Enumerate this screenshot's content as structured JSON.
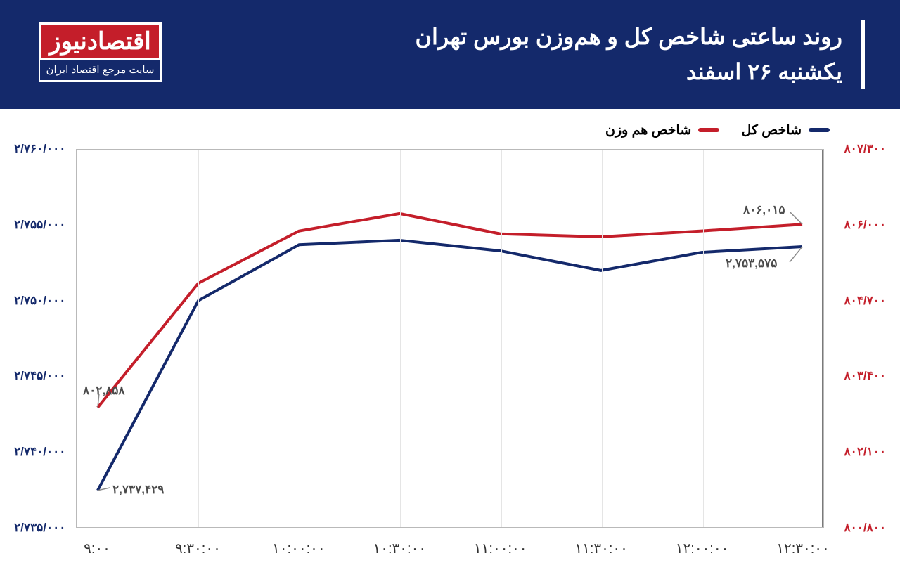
{
  "header": {
    "title_line1": "روند ساعتی شاخص کل و هم‌وزن بورس تهران",
    "title_line2": "یکشنبه ۲۶ اسفند"
  },
  "logo": {
    "brand": "اقتصادنیوز",
    "tagline": "سایت مرجع اقتصاد ایران"
  },
  "legend": {
    "series1": {
      "label": "شاخص کل",
      "color": "#14296b"
    },
    "series2": {
      "label": "شاخص هم وزن",
      "color": "#c41e2a"
    }
  },
  "chart": {
    "type": "line",
    "background_color": "#ffffff",
    "grid_color": "#cfcfcf",
    "x_labels": [
      "۹:۰۰",
      "۹:۳۰:۰۰",
      "۱۰:۰۰:۰۰",
      "۱۰:۳۰:۰۰",
      "۱۱:۰۰:۰۰",
      "۱۱:۳۰:۰۰",
      "۱۲:۰۰:۰۰",
      "۱۲:۳۰:۰۰"
    ],
    "axis_left": {
      "color": "#14296b",
      "min": 2735000,
      "max": 2760000,
      "ticks": [
        2735000,
        2740000,
        2745000,
        2750000,
        2755000,
        2760000
      ],
      "tick_labels": [
        "۲/۷۳۵/۰۰۰",
        "۲/۷۴۰/۰۰۰",
        "۲/۷۴۵/۰۰۰",
        "۲/۷۵۰/۰۰۰",
        "۲/۷۵۵/۰۰۰",
        "۲/۷۶۰/۰۰۰"
      ]
    },
    "axis_right": {
      "color": "#c41e2a",
      "min": 800800,
      "max": 807300,
      "ticks": [
        800800,
        802100,
        803400,
        804700,
        806000,
        807300
      ],
      "tick_labels": [
        "۸۰۰/۸۰۰",
        "۸۰۲/۱۰۰",
        "۸۰۳/۴۰۰",
        "۸۰۴/۷۰۰",
        "۸۰۶/۰۰۰",
        "۸۰۷/۳۰۰"
      ]
    },
    "series_total": {
      "color": "#14296b",
      "width": 4,
      "axis": "left",
      "values": [
        2737429,
        2750000,
        2753700,
        2754000,
        2753300,
        2752000,
        2753200,
        2753575
      ]
    },
    "series_equal": {
      "color": "#c41e2a",
      "width": 4,
      "axis": "right",
      "values": [
        802858,
        805000,
        805900,
        806200,
        805850,
        805800,
        805900,
        806015
      ]
    },
    "annotations": {
      "start_total": "۲,۷۳۷,۴۲۹",
      "start_equal": "۸۰۲,۸۵۸",
      "end_total": "۲,۷۵۳,۵۷۵",
      "end_equal": "۸۰۶,۰۱۵"
    },
    "line_fontsize": 17,
    "xlabel_fontsize": 20
  }
}
